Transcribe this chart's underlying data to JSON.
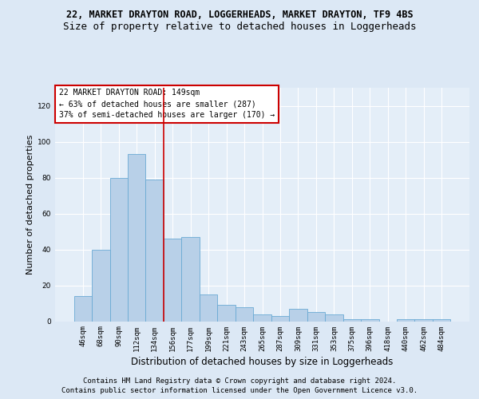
{
  "title_line1": "22, MARKET DRAYTON ROAD, LOGGERHEADS, MARKET DRAYTON, TF9 4BS",
  "title_line2": "Size of property relative to detached houses in Loggerheads",
  "xlabel": "Distribution of detached houses by size in Loggerheads",
  "ylabel": "Number of detached properties",
  "categories": [
    "46sqm",
    "68sqm",
    "90sqm",
    "112sqm",
    "134sqm",
    "156sqm",
    "177sqm",
    "199sqm",
    "221sqm",
    "243sqm",
    "265sqm",
    "287sqm",
    "309sqm",
    "331sqm",
    "353sqm",
    "375sqm",
    "396sqm",
    "418sqm",
    "440sqm",
    "462sqm",
    "484sqm"
  ],
  "values": [
    14,
    40,
    80,
    93,
    79,
    46,
    47,
    15,
    9,
    8,
    4,
    3,
    7,
    5,
    4,
    1,
    1,
    0,
    1,
    1,
    1
  ],
  "bar_color": "#b8d0e8",
  "bar_edge_color": "#6aaad4",
  "vline_position": 4.5,
  "vline_color": "#cc0000",
  "annotation_text": "22 MARKET DRAYTON ROAD: 149sqm\n← 63% of detached houses are smaller (287)\n37% of semi-detached houses are larger (170) →",
  "annotation_box_facecolor": "#ffffff",
  "annotation_box_edgecolor": "#cc0000",
  "ylim": [
    0,
    130
  ],
  "yticks": [
    0,
    20,
    40,
    60,
    80,
    100,
    120
  ],
  "footer_line1": "Contains HM Land Registry data © Crown copyright and database right 2024.",
  "footer_line2": "Contains public sector information licensed under the Open Government Licence v3.0.",
  "background_color": "#dce8f5",
  "plot_bg_color": "#e4eef8",
  "grid_color": "#ffffff",
  "title1_fontsize": 8.5,
  "title2_fontsize": 9,
  "tick_fontsize": 6.5,
  "ylabel_fontsize": 8,
  "xlabel_fontsize": 8.5,
  "footer_fontsize": 6.5,
  "annotation_fontsize": 7
}
